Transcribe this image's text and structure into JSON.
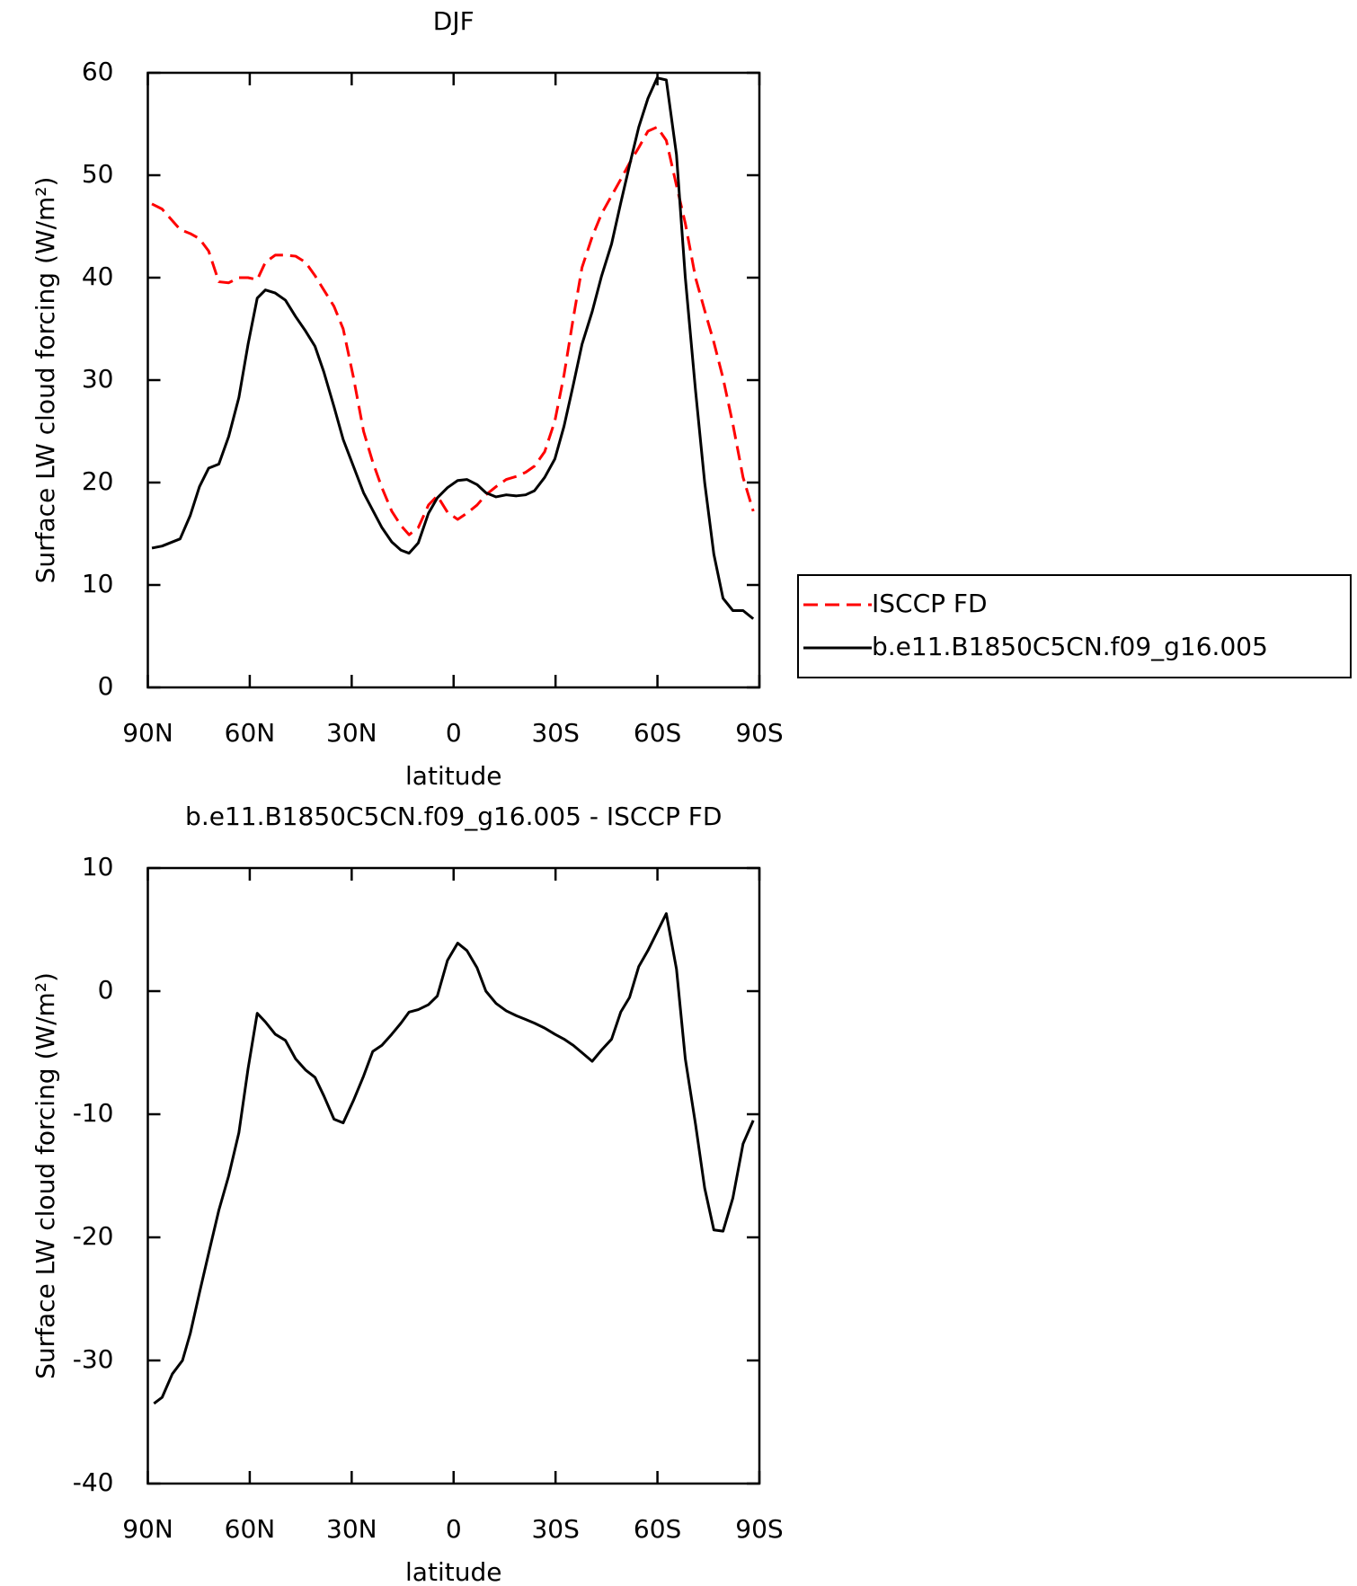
{
  "chart_data": [
    {
      "type": "line",
      "title": "DJF",
      "xlabel": "latitude",
      "ylabel": "Surface LW cloud forcing (W/m²)",
      "x": [
        88.8,
        85.8,
        80.5,
        77.5,
        74.8,
        72.1,
        69.1,
        66.2,
        63.2,
        60.5,
        57.8,
        55.4,
        52.5,
        49.5,
        46.5,
        43.6,
        40.8,
        38.2,
        35.2,
        32.5,
        29.5,
        26.5,
        23.8,
        21.1,
        18.2,
        15.5,
        13.1,
        10.4,
        7.4,
        4.8,
        1.8,
        -1.2,
        -3.9,
        -6.9,
        -9.5,
        -12.5,
        -15.5,
        -18.5,
        -21.2,
        -23.8,
        -26.8,
        -29.8,
        -32.5,
        -35.2,
        -37.8,
        -40.8,
        -43.5,
        -46.5,
        -49.2,
        -51.8,
        -54.5,
        -57.2,
        -59.9,
        -62.6,
        -65.6,
        -68.2,
        -71.2,
        -73.9,
        -76.6,
        -79.3,
        -82.2,
        -85.2,
        -88.2
      ],
      "series": [
        {
          "name": "ISCCP FD",
          "color": "#ff0000",
          "line_style": "dashed",
          "values": [
            47.2,
            46.7,
            44.7,
            44.3,
            43.8,
            42.6,
            39.6,
            39.5,
            40,
            40,
            39.8,
            41.5,
            42.2,
            42.2,
            42.1,
            41.5,
            40.2,
            38.8,
            37.2,
            35,
            30.3,
            25,
            22,
            19.5,
            17.2,
            15.8,
            14.9,
            15.6,
            17.8,
            18.7,
            17.1,
            16.4,
            17,
            17.8,
            18.8,
            19.6,
            20.3,
            20.6,
            21,
            21.6,
            23,
            26,
            30.5,
            36,
            41,
            44,
            46.2,
            48,
            49.6,
            51.2,
            52.7,
            54.3,
            54.7,
            53.4,
            49,
            45.3,
            40,
            36.8,
            33.7,
            30.2,
            25.7,
            20.5,
            17.2
          ]
        },
        {
          "name": "b.e11.B1850C5CN.f09_g16.005",
          "color": "#000000",
          "line_style": "solid",
          "values": [
            13.6,
            13.8,
            14.5,
            16.8,
            19.6,
            21.4,
            21.8,
            24.5,
            28.3,
            33.5,
            38,
            38.8,
            38.5,
            37.8,
            36.2,
            34.8,
            33.3,
            30.8,
            27.4,
            24.2,
            21.6,
            19,
            17.3,
            15.6,
            14.2,
            13.4,
            13.1,
            14.1,
            17,
            18.5,
            19.5,
            20.2,
            20.3,
            19.8,
            19,
            18.6,
            18.8,
            18.7,
            18.8,
            19.2,
            20.5,
            22.3,
            25.5,
            29.5,
            33.5,
            36.7,
            40.1,
            43.3,
            47.3,
            51,
            54.7,
            57.5,
            59.5,
            59.3,
            52,
            40,
            29,
            20,
            13,
            8.7,
            7.5,
            7.5,
            6.7
          ]
        }
      ],
      "xlim": [
        90,
        -90
      ],
      "xticks": [
        {
          "value": 90,
          "label": "90N"
        },
        {
          "value": 60,
          "label": "60N"
        },
        {
          "value": 30,
          "label": "30N"
        },
        0,
        {
          "value": -30,
          "label": "30S"
        },
        {
          "value": -60,
          "label": "60S"
        },
        {
          "value": -90,
          "label": "90S"
        }
      ],
      "ylim": [
        0,
        60
      ],
      "yticks": [
        0,
        10,
        20,
        30,
        40,
        50,
        60
      ],
      "legend": "outside-right"
    },
    {
      "type": "line",
      "title": "b.e11.B1850C5CN.f09_g16.005 - ISCCP FD",
      "xlabel": "latitude",
      "ylabel": "Surface LW cloud forcing (W/m²)",
      "x": [
        88.2,
        85.8,
        82.8,
        79.8,
        77.5,
        74.8,
        72.1,
        69.1,
        66.2,
        63.2,
        60.5,
        57.8,
        55.4,
        52.5,
        49.5,
        46.5,
        43.6,
        40.8,
        38.2,
        35.2,
        32.5,
        29.5,
        26.5,
        23.8,
        21.1,
        18.2,
        15.5,
        13.1,
        10.4,
        7.4,
        4.8,
        1.8,
        -1.2,
        -3.9,
        -6.9,
        -9.5,
        -12.5,
        -15.5,
        -18.5,
        -21.2,
        -23.8,
        -26.8,
        -29.8,
        -32.5,
        -35.2,
        -37.8,
        -40.8,
        -43.5,
        -46.5,
        -49.2,
        -51.8,
        -54.5,
        -57.2,
        -59.9,
        -62.6,
        -65.6,
        -68.2,
        -71.2,
        -73.9,
        -76.6,
        -79.3,
        -82.2,
        -85.2,
        -88.2
      ],
      "series": [
        {
          "name": "b.e11.B1850C5CN.f09_g16.005 - ISCCP FD",
          "color": "#000000",
          "line_style": "solid",
          "values": [
            -33.5,
            -33,
            -31.1,
            -30,
            -27.8,
            -24.5,
            -21.3,
            -17.8,
            -15,
            -11.5,
            -6.3,
            -1.8,
            -2.5,
            -3.5,
            -4,
            -5.5,
            -6.4,
            -7,
            -8.5,
            -10.4,
            -10.7,
            -8.9,
            -6.9,
            -4.9,
            -4.4,
            -3.5,
            -2.6,
            -1.7,
            -1.5,
            -1.1,
            -0.4,
            2.5,
            3.9,
            3.3,
            1.9,
            0,
            -1,
            -1.6,
            -2,
            -2.3,
            -2.6,
            -3,
            -3.5,
            -3.9,
            -4.4,
            -5,
            -5.7,
            -4.8,
            -3.9,
            -1.7,
            -0.5,
            2,
            3.3,
            4.8,
            6.3,
            1.8,
            -5.5,
            -10.8,
            -16,
            -19.4,
            -19.5,
            -16.8,
            -12.4,
            -10.5
          ]
        }
      ],
      "xlim": [
        90,
        -90
      ],
      "xticks": [
        {
          "value": 90,
          "label": "90N"
        },
        {
          "value": 60,
          "label": "60N"
        },
        {
          "value": 30,
          "label": "30N"
        },
        0,
        {
          "value": -30,
          "label": "30S"
        },
        {
          "value": -60,
          "label": "60S"
        },
        {
          "value": -90,
          "label": "90S"
        }
      ],
      "ylim": [
        -40,
        10
      ],
      "yticks": [
        -40,
        -30,
        -20,
        -10,
        0,
        10
      ]
    }
  ]
}
